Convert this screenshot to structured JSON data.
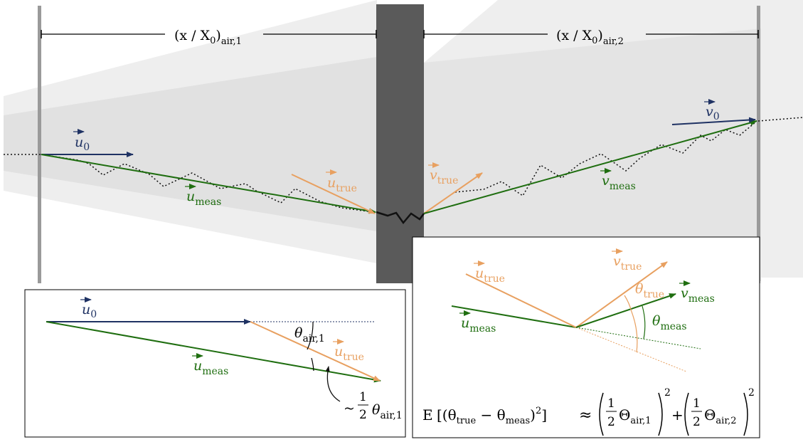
{
  "labels": {
    "span_left_main": "(x / X",
    "span_left_sub0": "0",
    "span_left_close": ")",
    "span_left_sub": "air,1",
    "span_right_main": "(x / X",
    "span_right_sub0": "0",
    "span_right_close": ")",
    "span_right_sub": "air,2",
    "u": "u",
    "v": "v",
    "sub_0": "0",
    "sub_true": "true",
    "sub_meas": "meas",
    "theta": "θ",
    "sub_air1": "air,1",
    "approx_prefix": "~",
    "frac_num": "1",
    "frac_den": "2",
    "formula_E": "E",
    "formula_inner_open": "[(θ",
    "formula_minus": " − θ",
    "formula_inner_close": ")",
    "formula_sq": "2",
    "formula_bracket_close": "]",
    "formula_approx": "≈",
    "formula_Theta": "Θ",
    "formula_sub_air1": "air,1",
    "formula_sub_air2": "air,2",
    "formula_plus": "+"
  },
  "colors": {
    "navy": "#1f3263",
    "orange": "#e8a060",
    "green": "#1f6e10",
    "plate": "#5a5a5a",
    "detector": "#9a9a9a",
    "band_light": "#eeeeee",
    "band_mid": "#dedede"
  }
}
